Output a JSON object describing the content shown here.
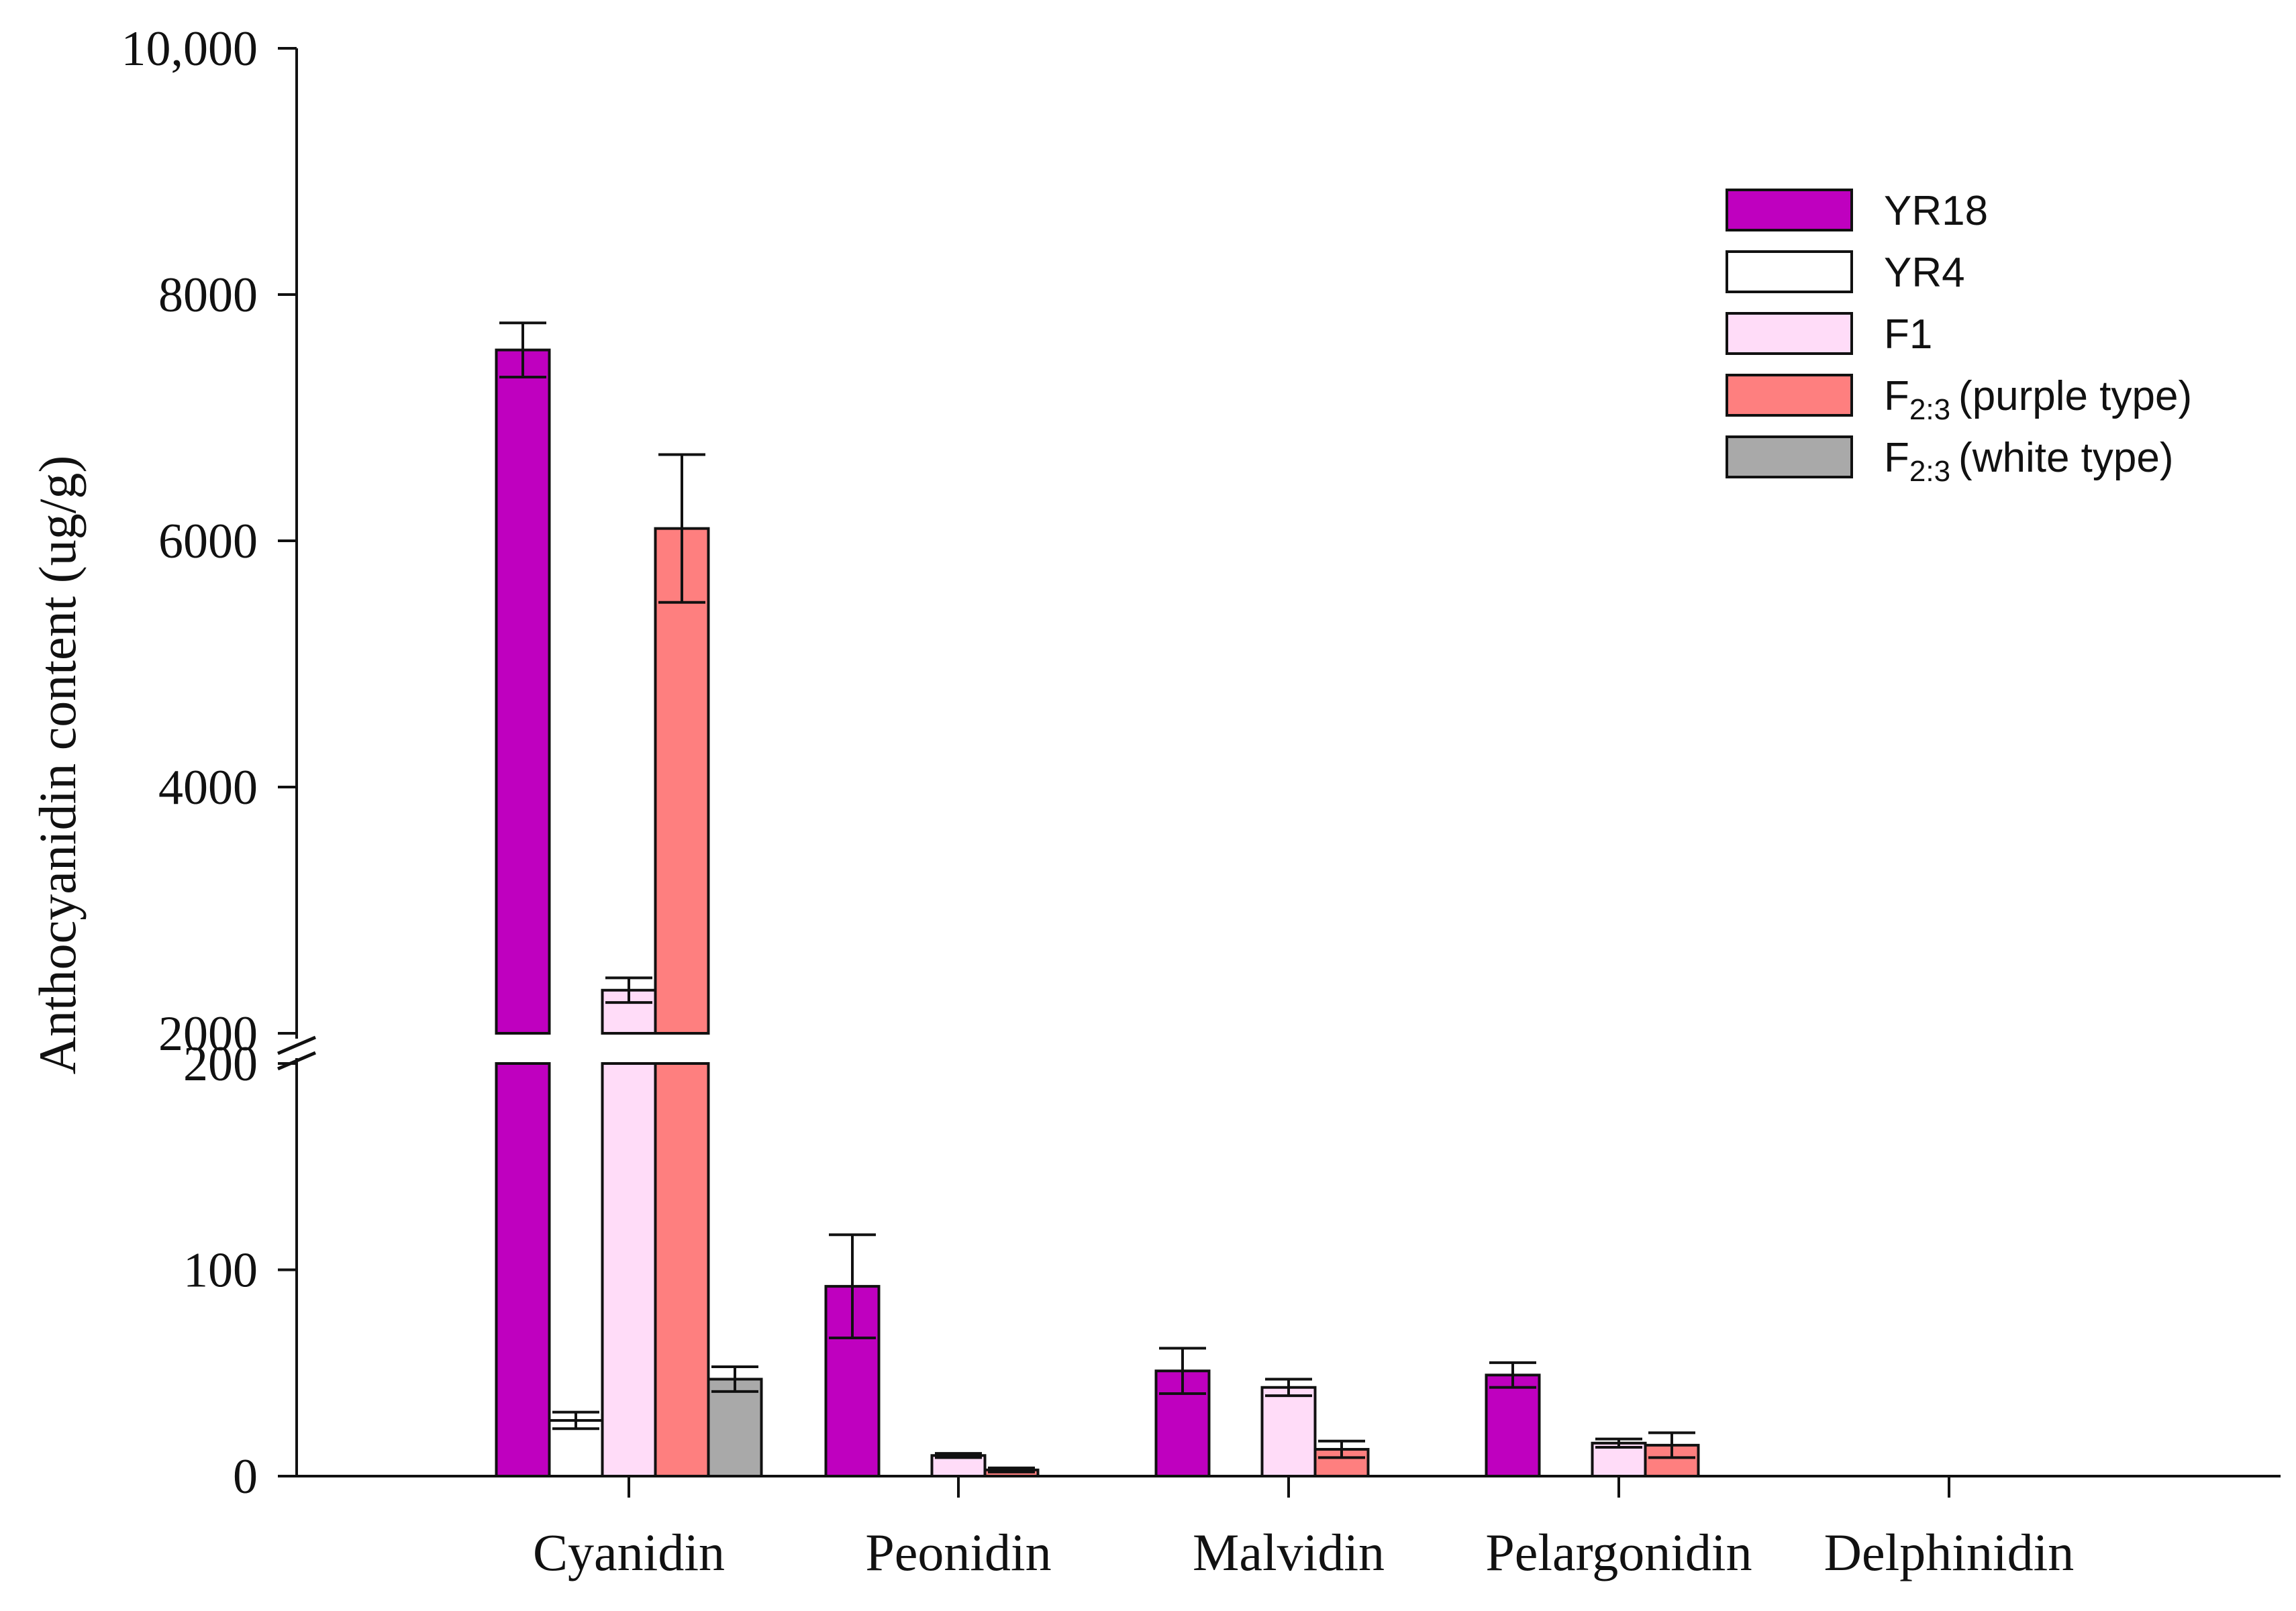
{
  "chart_data": {
    "type": "bar",
    "title": "",
    "xlabel": "",
    "ylabel": "Anthocyanidin content (ug/g)",
    "grid": false,
    "legend_position": "top-right",
    "axis_break": {
      "lower_range": [
        0,
        200
      ],
      "upper_range": [
        2000,
        10000
      ]
    },
    "y_ticks_lower": [
      "0",
      "100",
      "200"
    ],
    "y_ticks_upper": [
      "2000",
      "4000",
      "6000",
      "8000",
      "10,000"
    ],
    "y_tick_values_lower": [
      0,
      100,
      200
    ],
    "y_tick_values_upper": [
      2000,
      4000,
      6000,
      8000,
      10000
    ],
    "categories": [
      "Cyanidin",
      "Peonidin",
      "Malvidin",
      "Pelargonidin",
      "Delphinidin"
    ],
    "series": [
      {
        "name": "YR18",
        "label_main": "YR18",
        "label_sub": "",
        "label_suffix": "",
        "color": "#bf00bf",
        "values": [
          7550,
          92,
          51,
          49,
          0
        ],
        "errors": [
          220,
          25,
          11,
          6,
          0
        ]
      },
      {
        "name": "YR4",
        "label_main": "YR4",
        "label_sub": "",
        "label_suffix": "",
        "color": "#ffffff",
        "values": [
          27,
          0,
          0,
          0,
          0
        ],
        "errors": [
          4,
          0,
          0,
          0,
          0
        ]
      },
      {
        "name": "F1",
        "label_main": "F1",
        "label_sub": "",
        "label_suffix": "",
        "color": "#ffdcf8",
        "values": [
          2350,
          10,
          43,
          16,
          0
        ],
        "errors": [
          100,
          1,
          4,
          2,
          0
        ]
      },
      {
        "name": "F2:3 (purple type)",
        "label_main": "F",
        "label_sub": "2:3",
        "label_suffix": "(purple type)",
        "color": "#fe7f7f",
        "values": [
          6100,
          3,
          13,
          15,
          0
        ],
        "errors": [
          600,
          1,
          4,
          6,
          0
        ]
      },
      {
        "name": "F2:3 (white type)",
        "label_main": "F",
        "label_sub": "2:3",
        "label_suffix": "(white type)",
        "color": "#a9a9a9",
        "values": [
          47,
          0,
          0,
          0,
          0
        ],
        "errors": [
          6,
          0,
          0,
          0,
          0
        ]
      }
    ]
  }
}
